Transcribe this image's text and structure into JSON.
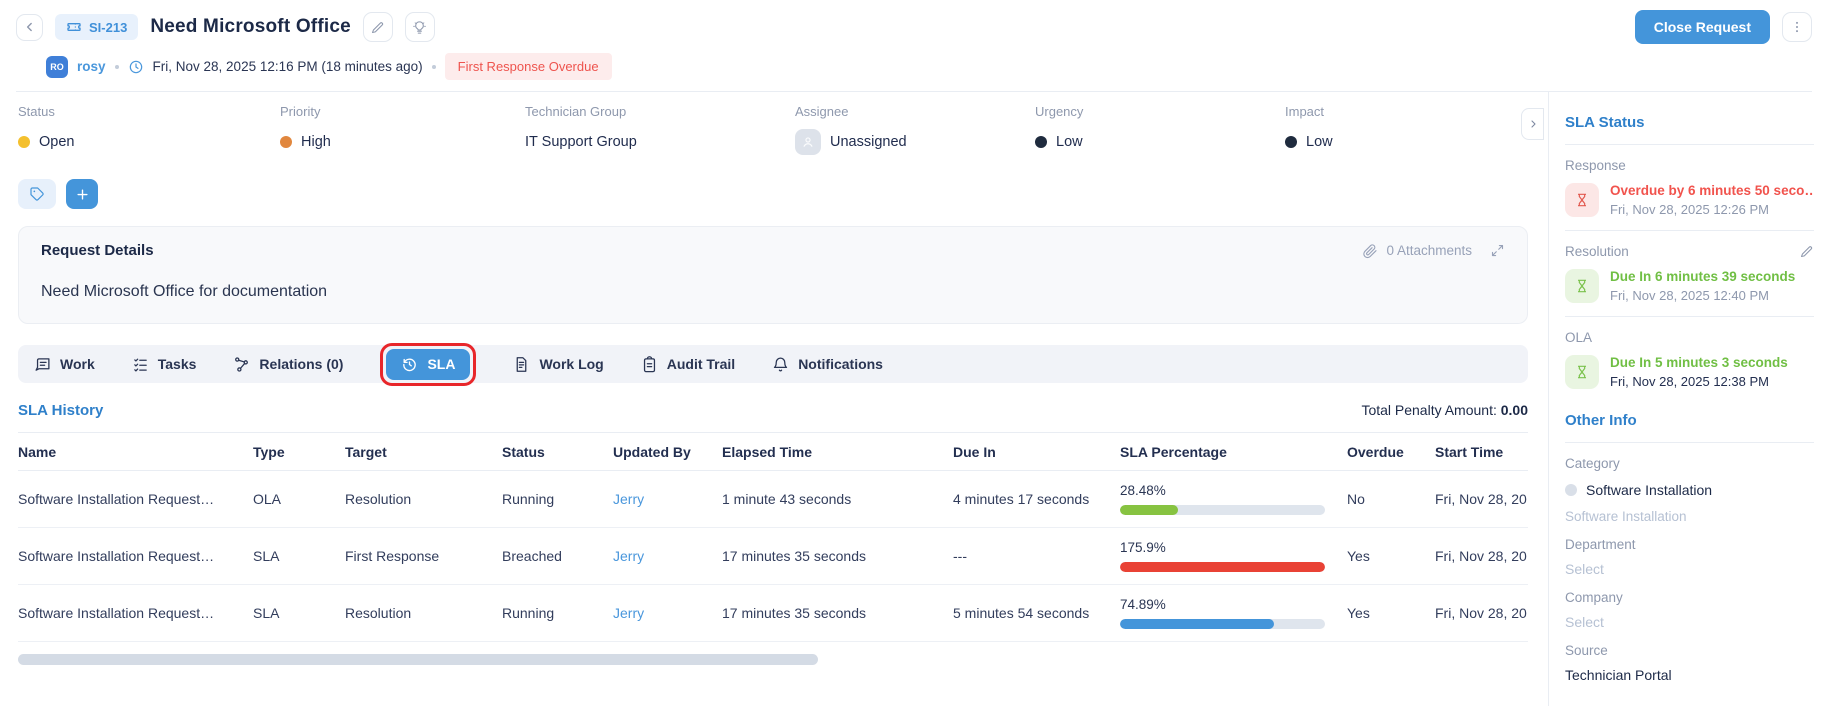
{
  "colors": {
    "accent_blue": "#4495da",
    "status_open_dot": "#f4c02e",
    "priority_high_dot": "#e1873e",
    "urgency_low_dot": "#1f2b3e",
    "impact_low_dot": "#1f2b3e",
    "annotation_red": "#e8262a"
  },
  "header": {
    "ticket_id": "SI-213",
    "title": "Need Microsoft Office",
    "close_button": "Close Request",
    "requester_initials": "RO",
    "requester": "rosy",
    "created": "Fri, Nov 28, 2025 12:16 PM (18 minutes ago)",
    "overdue_badge": "First Response Overdue"
  },
  "fields": [
    {
      "label": "Status",
      "value": "Open",
      "dot": "#f4c02e"
    },
    {
      "label": "Priority",
      "value": "High",
      "dot": "#e1873e"
    },
    {
      "label": "Technician Group",
      "value": "IT Support Group"
    },
    {
      "label": "Assignee",
      "value": "Unassigned"
    },
    {
      "label": "Urgency",
      "value": "Low",
      "dot": "#1f2b3e"
    },
    {
      "label": "Impact",
      "value": "Low",
      "dot": "#1f2b3e"
    }
  ],
  "request_details": {
    "title": "Request Details",
    "attachments": "0 Attachments",
    "body": "Need Microsoft Office for documentation"
  },
  "tabs": [
    {
      "label": "Work"
    },
    {
      "label": "Tasks"
    },
    {
      "label": "Relations (0)"
    },
    {
      "label": "SLA",
      "active": true
    },
    {
      "label": "Work Log"
    },
    {
      "label": "Audit Trail"
    },
    {
      "label": "Notifications"
    }
  ],
  "sla_history": {
    "title": "SLA History",
    "penalty_label": "Total Penalty Amount:",
    "penalty_value": "0.00",
    "columns": [
      "Name",
      "Type",
      "Target",
      "Status",
      "Updated By",
      "Elapsed Time",
      "Due In",
      "SLA Percentage",
      "Overdue",
      "Start Time"
    ],
    "rows": [
      {
        "name": "Software Installation Request…",
        "type": "OLA",
        "target": "Resolution",
        "status": "Running",
        "updated_by": "Jerry",
        "elapsed": "1 minute 43 seconds",
        "due_in": "4 minutes 17 seconds",
        "percentage": "28.48%",
        "pct": 28.48,
        "bar_color": "#87c341",
        "overdue": "No",
        "start": "Fri, Nov 28, 20"
      },
      {
        "name": "Software Installation Request…",
        "type": "SLA",
        "target": "First Response",
        "status": "Breached",
        "updated_by": "Jerry",
        "elapsed": "17 minutes 35 seconds",
        "due_in": "---",
        "percentage": "175.9%",
        "pct": 100,
        "bar_color": "#e94235",
        "overdue": "Yes",
        "start": "Fri, Nov 28, 20"
      },
      {
        "name": "Software Installation Request…",
        "type": "SLA",
        "target": "Resolution",
        "status": "Running",
        "updated_by": "Jerry",
        "elapsed": "17 minutes 35 seconds",
        "due_in": "5 minutes 54 seconds",
        "percentage": "74.89%",
        "pct": 74.89,
        "bar_color": "#4495da",
        "overdue": "Yes",
        "start": "Fri, Nov 28, 20"
      }
    ]
  },
  "sidebar": {
    "sla_status_title": "SLA Status",
    "response_label": "Response",
    "response_status": "Overdue by 6 minutes 50 seco…",
    "response_time": "Fri, Nov 28, 2025 12:26 PM",
    "resolution_label": "Resolution",
    "resolution_status": "Due In 6 minutes 39 seconds",
    "resolution_time": "Fri, Nov 28, 2025 12:40 PM",
    "ola_label": "OLA",
    "ola_status": "Due In 5 minutes 3 seconds",
    "ola_time": "Fri, Nov 28, 2025 12:38 PM",
    "other_info_title": "Other Info",
    "category_label": "Category",
    "category_value": "Software Installation",
    "subcategory_value": "Software Installation",
    "department_label": "Department",
    "department_value": "Select",
    "company_label": "Company",
    "company_value": "Select",
    "source_label": "Source",
    "source_value": "Technician Portal"
  }
}
